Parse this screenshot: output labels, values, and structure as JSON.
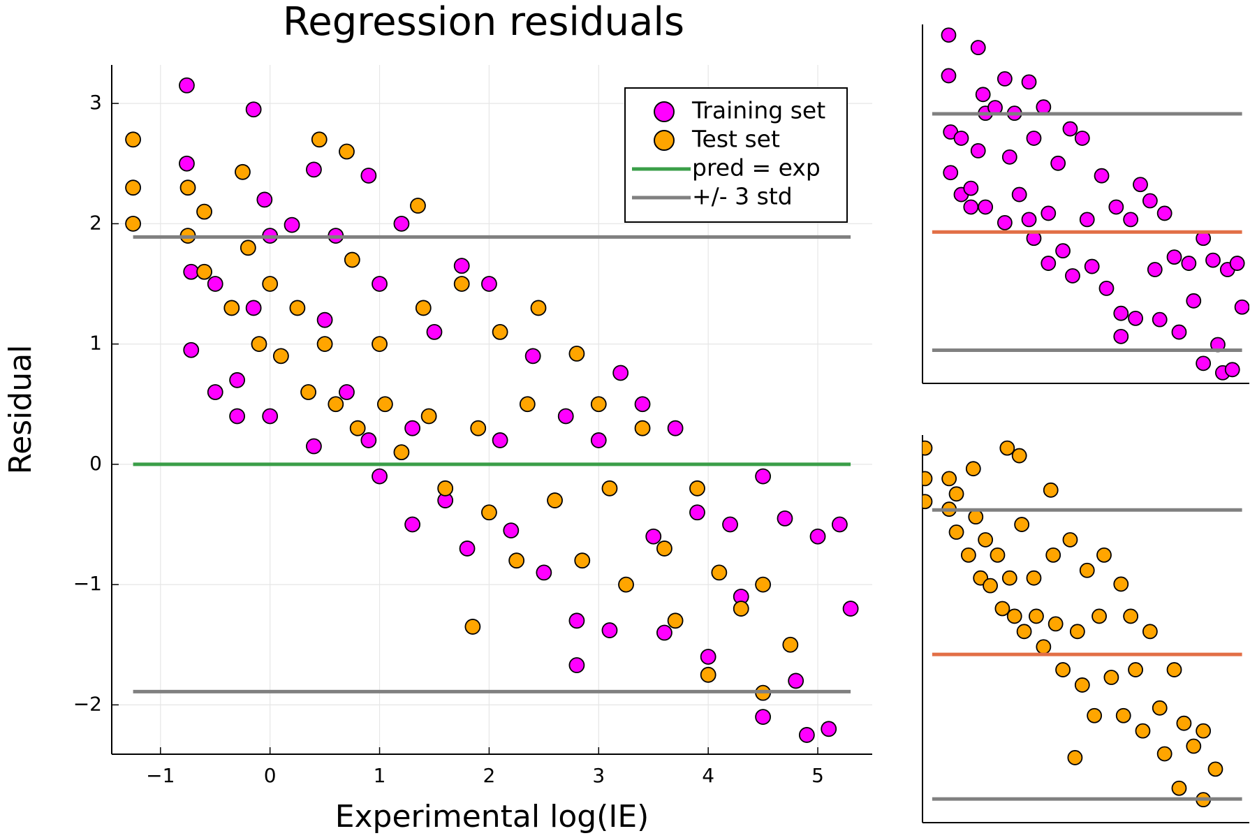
{
  "chart_data": [
    {
      "type": "scatter",
      "title": "Regression residuals",
      "x_label": "Experimental log(IE)",
      "y_label": "Residual",
      "xlim": [
        -1.445,
        5.497
      ],
      "ylim": [
        -2.41,
        3.32
      ],
      "xticks": [
        {
          "value": -1,
          "label": "−1"
        },
        0,
        1,
        2,
        3,
        4,
        5
      ],
      "yticks": [
        {
          "value": -2,
          "label": "−2"
        },
        {
          "value": -1,
          "label": "−1"
        },
        0,
        1,
        2,
        3
      ],
      "grid": true,
      "legend": "top right",
      "series": [
        {
          "name": "Training set",
          "type": "scatter",
          "color": "#ff00ff",
          "x": [
            -0.76,
            -0.76,
            -0.72,
            -0.72,
            -0.5,
            -0.5,
            -0.3,
            -0.3,
            -0.15,
            -0.15,
            -0.05,
            0,
            0,
            0.2,
            0.4,
            0.4,
            0.5,
            0.6,
            0.7,
            0.9,
            0.9,
            1.0,
            1.0,
            1.2,
            1.3,
            1.3,
            1.5,
            1.6,
            1.75,
            1.8,
            2.0,
            2.1,
            2.2,
            2.4,
            2.5,
            2.7,
            2.8,
            2.8,
            3.0,
            3.1,
            3.2,
            3.4,
            3.5,
            3.6,
            3.7,
            3.9,
            4.0,
            4.2,
            4.3,
            4.5,
            4.5,
            4.7,
            4.8,
            4.9,
            5.0,
            5.1,
            5.2,
            5.3
          ],
          "values": [
            3.15,
            2.5,
            1.6,
            0.95,
            1.5,
            0.6,
            0.7,
            0.4,
            2.95,
            1.3,
            2.2,
            0.4,
            1.9,
            1.99,
            2.45,
            0.15,
            1.2,
            1.9,
            0.6,
            2.4,
            0.2,
            1.5,
            -0.1,
            2.0,
            0.3,
            -0.5,
            1.1,
            -0.3,
            1.65,
            -0.7,
            1.5,
            0.2,
            -0.55,
            0.9,
            -0.9,
            0.4,
            -1.67,
            -1.3,
            0.2,
            -1.38,
            0.76,
            0.5,
            -0.6,
            -1.4,
            0.3,
            -0.4,
            -1.6,
            -0.5,
            -1.1,
            -0.1,
            -2.1,
            -0.45,
            -1.8,
            -2.25,
            -0.6,
            -2.2,
            -0.5,
            -1.2
          ]
        },
        {
          "name": "Test set",
          "type": "scatter",
          "color": "#ffa500",
          "x": [
            -1.25,
            -1.25,
            -1.25,
            -0.75,
            -0.75,
            -0.6,
            -0.6,
            -0.35,
            -0.25,
            -0.2,
            -0.1,
            0,
            0.1,
            0.25,
            0.35,
            0.45,
            0.5,
            0.6,
            0.7,
            0.75,
            0.8,
            1.0,
            1.05,
            1.2,
            1.35,
            1.4,
            1.45,
            1.6,
            1.75,
            1.85,
            1.9,
            2.0,
            2.1,
            2.25,
            2.35,
            2.45,
            2.6,
            2.8,
            2.85,
            3.0,
            3.1,
            3.25,
            3.4,
            3.6,
            3.7,
            3.9,
            4.0,
            4.1,
            4.3,
            4.5,
            4.5,
            4.75
          ],
          "values": [
            2.7,
            2.0,
            2.3,
            2.3,
            1.9,
            2.1,
            1.6,
            1.3,
            2.43,
            1.8,
            1.0,
            1.5,
            0.9,
            1.3,
            0.6,
            2.7,
            1.0,
            0.5,
            2.6,
            1.7,
            0.3,
            1.0,
            0.5,
            0.1,
            2.15,
            1.3,
            0.4,
            -0.2,
            1.5,
            -1.35,
            0.3,
            -0.4,
            1.1,
            -0.8,
            0.5,
            1.3,
            -0.3,
            0.92,
            -0.8,
            0.5,
            -0.2,
            -1.0,
            0.3,
            -0.7,
            -1.3,
            -0.2,
            -1.75,
            -0.9,
            -1.2,
            -1.0,
            -1.9,
            -1.5
          ]
        },
        {
          "name": "pred = exp",
          "type": "line",
          "color": "#3a9e48",
          "x": [
            -1.25,
            5.3
          ],
          "values": [
            0,
            0
          ]
        },
        {
          "name": "+/- 3 std",
          "type": "line",
          "color": "#808080",
          "x": [
            -1.25,
            5.3,
            null,
            -1.25,
            5.3
          ],
          "values": [
            1.89,
            1.89,
            null,
            -1.89,
            -1.89
          ]
        }
      ]
    },
    {
      "type": "scatter",
      "xlim": [
        -1.3,
        5.45
      ],
      "ylim": [
        -2.42,
        3.32
      ],
      "grid": false,
      "series": [
        {
          "type": "scatter",
          "color": "#ff00ff",
          "x": [
            -0.76,
            -0.76,
            -0.72,
            -0.72,
            -0.5,
            -0.5,
            -0.3,
            -0.3,
            -0.15,
            -0.15,
            -0.05,
            0,
            0,
            0.2,
            0.4,
            0.4,
            0.5,
            0.6,
            0.7,
            0.9,
            0.9,
            1.0,
            1.0,
            1.2,
            1.3,
            1.3,
            1.5,
            1.6,
            1.75,
            1.8,
            2.0,
            2.1,
            2.2,
            2.4,
            2.5,
            2.7,
            2.8,
            2.8,
            3.0,
            3.1,
            3.2,
            3.4,
            3.5,
            3.6,
            3.7,
            3.9,
            4.0,
            4.2,
            4.3,
            4.5,
            4.5,
            4.7,
            4.8,
            4.9,
            5.0,
            5.1,
            5.2,
            5.3
          ],
          "values": [
            3.15,
            2.5,
            1.6,
            0.95,
            1.5,
            0.6,
            0.7,
            0.4,
            2.95,
            1.3,
            2.2,
            0.4,
            1.9,
            1.99,
            2.45,
            0.15,
            1.2,
            1.9,
            0.6,
            2.4,
            0.2,
            1.5,
            -0.1,
            2.0,
            0.3,
            -0.5,
            1.1,
            -0.3,
            1.65,
            -0.7,
            1.5,
            0.2,
            -0.55,
            0.9,
            -0.9,
            0.4,
            -1.67,
            -1.3,
            0.2,
            -1.38,
            0.76,
            0.5,
            -0.6,
            -1.4,
            0.3,
            -0.4,
            -1.6,
            -0.5,
            -1.1,
            -0.1,
            -2.1,
            -0.45,
            -1.8,
            -2.25,
            -0.6,
            -2.2,
            -0.5,
            -1.2
          ]
        },
        {
          "type": "line",
          "color": "#e26f46",
          "x": [
            -1.1,
            5.3
          ],
          "values": [
            0,
            0
          ]
        },
        {
          "type": "line",
          "color": "#808080",
          "x": [
            -1.1,
            5.3,
            null,
            -1.1,
            5.3
          ],
          "values": [
            1.89,
            1.89,
            null,
            -1.89,
            -1.89
          ]
        }
      ]
    },
    {
      "type": "scatter",
      "xlim": [
        -1.3,
        5.45
      ],
      "ylim": [
        -2.2,
        2.87
      ],
      "grid": false,
      "series": [
        {
          "type": "scatter",
          "color": "#ffa500",
          "x": [
            -1.25,
            -1.25,
            -1.25,
            -0.75,
            -0.75,
            -0.6,
            -0.6,
            -0.35,
            -0.25,
            -0.2,
            -0.1,
            0,
            0.1,
            0.25,
            0.35,
            0.45,
            0.5,
            0.6,
            0.7,
            0.75,
            0.8,
            1.0,
            1.05,
            1.2,
            1.35,
            1.4,
            1.45,
            1.6,
            1.75,
            1.85,
            1.9,
            2.0,
            2.1,
            2.25,
            2.35,
            2.45,
            2.6,
            2.8,
            2.85,
            3.0,
            3.1,
            3.25,
            3.4,
            3.6,
            3.7,
            3.9,
            4.0,
            4.1,
            4.3,
            4.5,
            4.5,
            4.75
          ],
          "values": [
            2.7,
            2.0,
            2.3,
            2.3,
            1.9,
            2.1,
            1.6,
            1.3,
            2.43,
            1.8,
            1.0,
            1.5,
            0.9,
            1.3,
            0.6,
            2.7,
            1.0,
            0.5,
            2.6,
            1.7,
            0.3,
            1.0,
            0.5,
            0.1,
            2.15,
            1.3,
            0.4,
            -0.2,
            1.5,
            -1.35,
            0.3,
            -0.4,
            1.1,
            -0.8,
            0.5,
            1.3,
            -0.3,
            0.92,
            -0.8,
            0.5,
            -0.2,
            -1.0,
            0.3,
            -0.7,
            -1.3,
            -0.2,
            -1.75,
            -0.9,
            -1.2,
            -1.0,
            -1.9,
            -1.5
          ]
        },
        {
          "type": "line",
          "color": "#e26f46",
          "x": [
            -1.1,
            5.3
          ],
          "values": [
            0,
            0
          ]
        },
        {
          "type": "line",
          "color": "#808080",
          "x": [
            -1.1,
            5.3,
            null,
            -1.1,
            5.3
          ],
          "values": [
            1.89,
            1.89,
            null,
            -1.89,
            -1.89
          ]
        }
      ]
    }
  ]
}
